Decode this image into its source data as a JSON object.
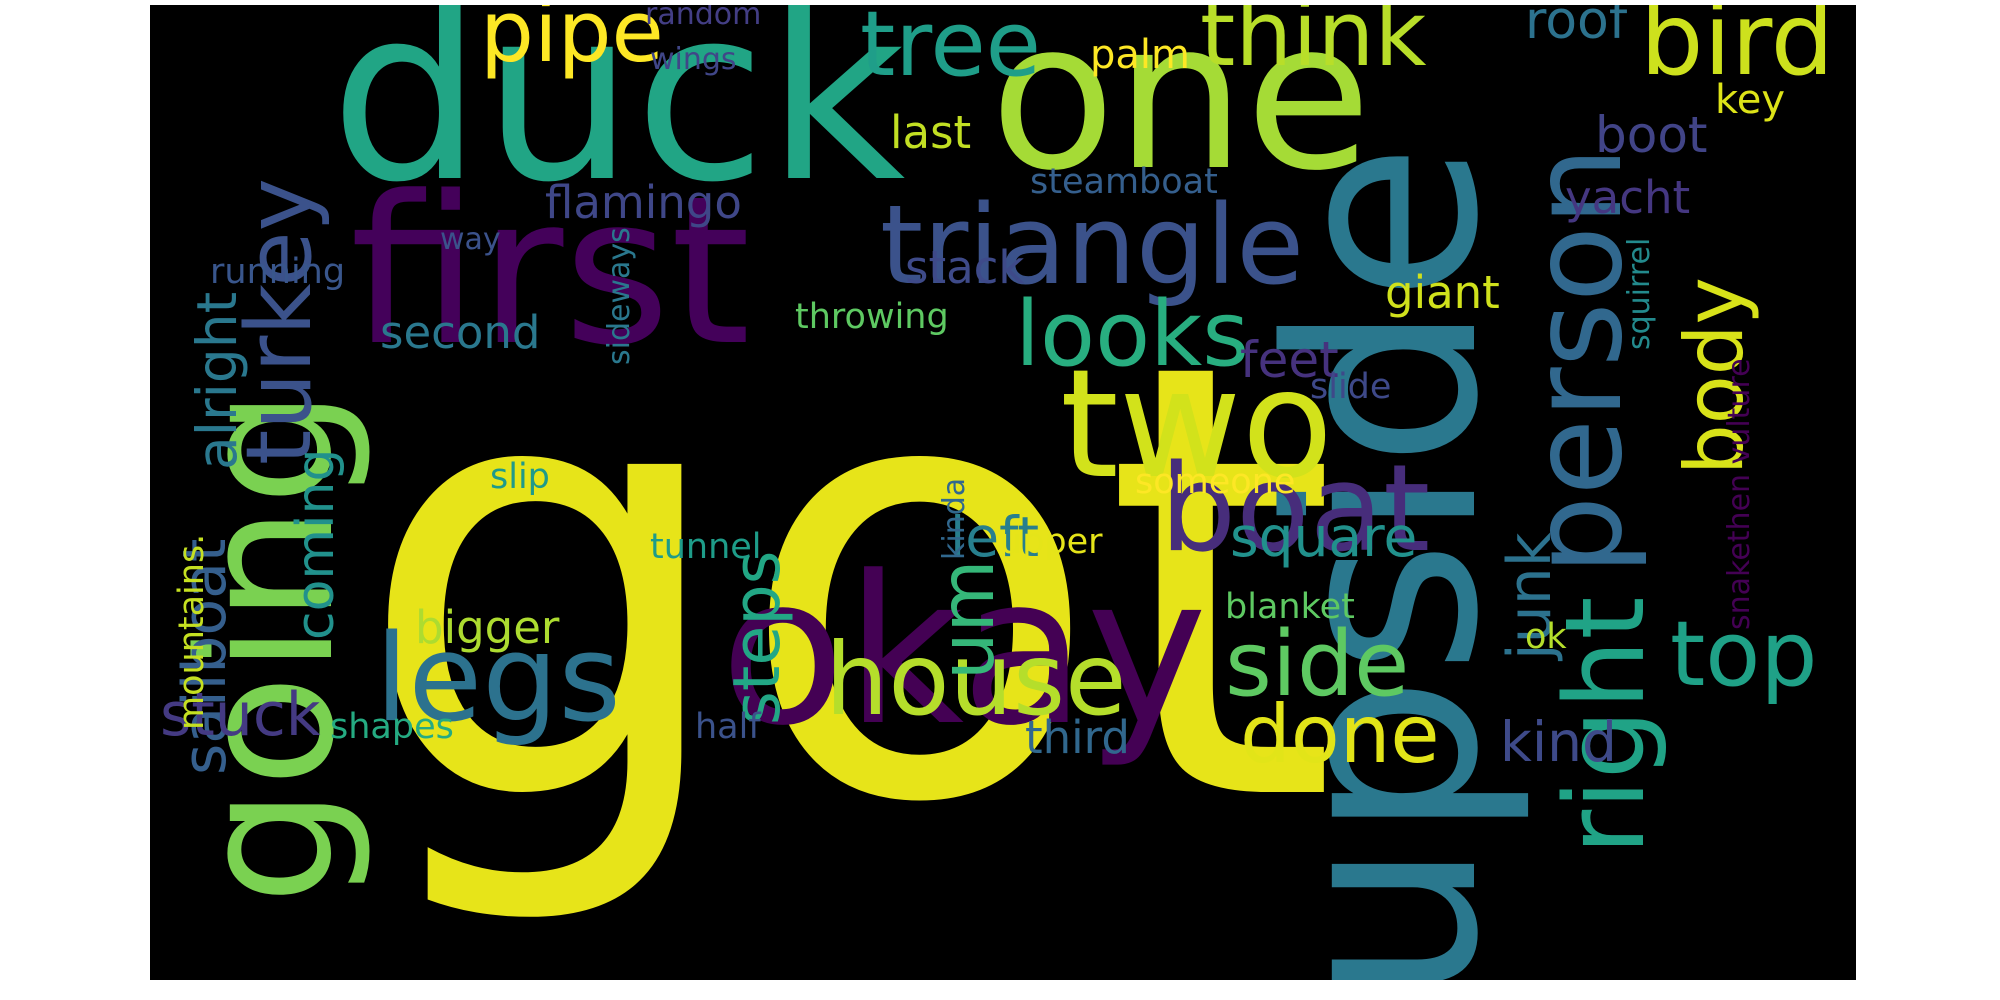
{
  "background": "#000000",
  "colormap": "viridis",
  "words": [
    {
      "text": "got",
      "color": "#e7e419"
    },
    {
      "text": "duck",
      "color": "#21a585"
    },
    {
      "text": "one",
      "color": "#a5db36"
    },
    {
      "text": "upside",
      "color": "#2a788e"
    },
    {
      "text": "first",
      "color": "#44015a"
    },
    {
      "text": "okay",
      "color": "#440154"
    },
    {
      "text": "going",
      "color": "#7ad151"
    },
    {
      "text": "two",
      "color": "#d2e21b"
    },
    {
      "text": "person",
      "color": "#31688e"
    },
    {
      "text": "triangle",
      "color": "#3b528b"
    },
    {
      "text": "boat",
      "color": "#472d7b"
    },
    {
      "text": "legs",
      "color": "#2c728e"
    },
    {
      "text": "right",
      "color": "#20a386"
    },
    {
      "text": "house",
      "color": "#b5de2b"
    },
    {
      "text": "looks",
      "color": "#28ae80"
    },
    {
      "text": "turkey",
      "color": "#3b528b"
    },
    {
      "text": "tree",
      "color": "#1f9e89"
    },
    {
      "text": "think",
      "color": "#b8de29"
    },
    {
      "text": "pipe",
      "color": "#fde725"
    },
    {
      "text": "bird",
      "color": "#cde11d"
    },
    {
      "text": "side",
      "color": "#5ec962"
    },
    {
      "text": "top",
      "color": "#1fa187"
    },
    {
      "text": "done",
      "color": "#e2e418"
    },
    {
      "text": "body",
      "color": "#d8e219"
    },
    {
      "text": "um",
      "color": "#35b779"
    },
    {
      "text": "steps",
      "color": "#22a785"
    },
    {
      "text": "sailboat",
      "color": "#355f8d"
    },
    {
      "text": "alright",
      "color": "#2a788e"
    },
    {
      "text": "junk",
      "color": "#2c728e"
    },
    {
      "text": "left",
      "color": "#277f8e"
    },
    {
      "text": "square",
      "color": "#21918c"
    },
    {
      "text": "stuck",
      "color": "#443a83"
    },
    {
      "text": "kind",
      "color": "#3e4a89"
    },
    {
      "text": "coming",
      "color": "#21918c"
    },
    {
      "text": "roof",
      "color": "#2c728e"
    },
    {
      "text": "boot",
      "color": "#414487"
    },
    {
      "text": "feet",
      "color": "#46327e"
    },
    {
      "text": "bigger",
      "color": "#addc30"
    },
    {
      "text": "third",
      "color": "#31688e"
    },
    {
      "text": "stack",
      "color": "#3e4a89"
    },
    {
      "text": "second",
      "color": "#2a788e"
    },
    {
      "text": "last",
      "color": "#c2df23"
    },
    {
      "text": "giant",
      "color": "#d0e11c"
    },
    {
      "text": "flamingo",
      "color": "#3f4788"
    },
    {
      "text": "yacht",
      "color": "#453781"
    },
    {
      "text": "palm",
      "color": "#fde725"
    },
    {
      "text": "key",
      "color": "#dde318"
    },
    {
      "text": "throwing",
      "color": "#5ec962"
    },
    {
      "text": "running",
      "color": "#39568c"
    },
    {
      "text": "steamboat",
      "color": "#355f8d"
    },
    {
      "text": "way",
      "color": "#3b528b"
    },
    {
      "text": "random",
      "color": "#433e85"
    },
    {
      "text": "wings",
      "color": "#404688"
    },
    {
      "text": "slip",
      "color": "#1f9a8a"
    },
    {
      "text": "tunnel",
      "color": "#1e9c89"
    },
    {
      "text": "someone",
      "color": "#fde725"
    },
    {
      "text": "upper",
      "color": "#e5e419"
    },
    {
      "text": "blanket",
      "color": "#5ec962"
    },
    {
      "text": "ok",
      "color": "#b5de2b"
    },
    {
      "text": "shapes",
      "color": "#25ab82"
    },
    {
      "text": "half",
      "color": "#3b528b"
    },
    {
      "text": "slide",
      "color": "#3e4989"
    },
    {
      "text": "mountains.",
      "color": "#c5e021"
    },
    {
      "text": "kinda",
      "color": "#31688e"
    },
    {
      "text": "sideways",
      "color": "#2a788e"
    },
    {
      "text": "squirrel",
      "color": "#238a8d"
    },
    {
      "text": "snakethen vulture",
      "color": "#440154"
    }
  ]
}
